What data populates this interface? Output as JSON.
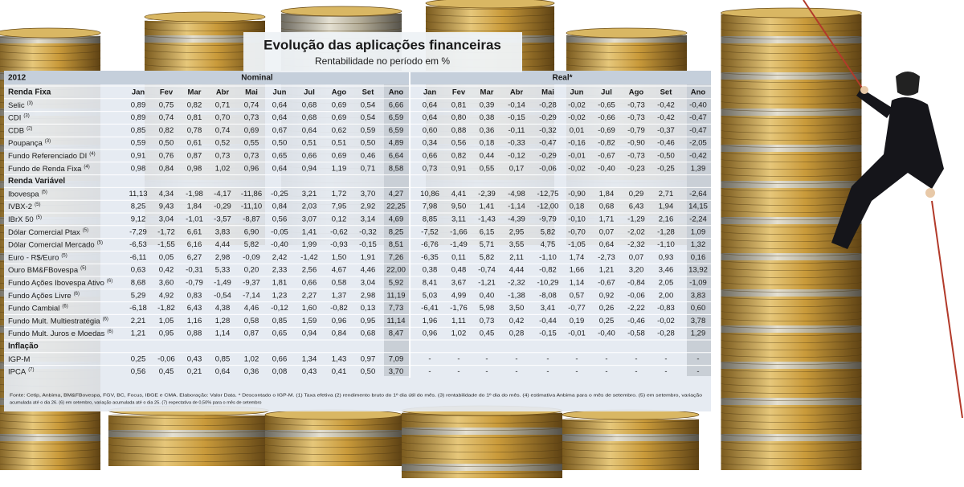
{
  "title": "Evolução das aplicações financeiras",
  "subtitle": "Rentabilidade no período em %",
  "year": "2012",
  "nominal": {
    "label": "Nominal",
    "columns": [
      "Jan",
      "Fev",
      "Mar",
      "Abr",
      "Mai",
      "Jun",
      "Jul",
      "Ago",
      "Set",
      "Ano"
    ]
  },
  "real": {
    "label": "Real*",
    "columns": [
      "Jan",
      "Fev",
      "Mar",
      "Abr",
      "Mai",
      "Jun",
      "Jul",
      "Ago",
      "Set",
      "Ano"
    ]
  },
  "sections": [
    {
      "title": "Renda Fixa",
      "rows": [
        {
          "label": "Selic",
          "note": "(3)",
          "nominal": [
            "0,89",
            "0,75",
            "0,82",
            "0,71",
            "0,74",
            "0,64",
            "0,68",
            "0,69",
            "0,54",
            "6,66"
          ],
          "real": [
            "0,64",
            "0,81",
            "0,39",
            "-0,14",
            "-0,28",
            "-0,02",
            "-0,65",
            "-0,73",
            "-0,42",
            "-0,40"
          ]
        },
        {
          "label": "CDI",
          "note": "(3)",
          "nominal": [
            "0,89",
            "0,74",
            "0,81",
            "0,70",
            "0,73",
            "0,64",
            "0,68",
            "0,69",
            "0,54",
            "6,59"
          ],
          "real": [
            "0,64",
            "0,80",
            "0,38",
            "-0,15",
            "-0,29",
            "-0,02",
            "-0,66",
            "-0,73",
            "-0,42",
            "-0,47"
          ]
        },
        {
          "label": "CDB",
          "note": "(2)",
          "nominal": [
            "0,85",
            "0,82",
            "0,78",
            "0,74",
            "0,69",
            "0,67",
            "0,64",
            "0,62",
            "0,59",
            "6,59"
          ],
          "real": [
            "0,60",
            "0,88",
            "0,36",
            "-0,11",
            "-0,32",
            "0,01",
            "-0,69",
            "-0,79",
            "-0,37",
            "-0,47"
          ]
        },
        {
          "label": "Poupança",
          "note": "(3)",
          "nominal": [
            "0,59",
            "0,50",
            "0,61",
            "0,52",
            "0,55",
            "0,50",
            "0,51",
            "0,51",
            "0,50",
            "4,89"
          ],
          "real": [
            "0,34",
            "0,56",
            "0,18",
            "-0,33",
            "-0,47",
            "-0,16",
            "-0,82",
            "-0,90",
            "-0,46",
            "-2,05"
          ]
        },
        {
          "label": "Fundo Referenciado DI",
          "note": "(4)",
          "nominal": [
            "0,91",
            "0,76",
            "0,87",
            "0,73",
            "0,73",
            "0,65",
            "0,66",
            "0,69",
            "0,46",
            "6,64"
          ],
          "real": [
            "0,66",
            "0,82",
            "0,44",
            "-0,12",
            "-0,29",
            "-0,01",
            "-0,67",
            "-0,73",
            "-0,50",
            "-0,42"
          ]
        },
        {
          "label": "Fundo de Renda Fixa",
          "note": "(4)",
          "nominal": [
            "0,98",
            "0,84",
            "0,98",
            "1,02",
            "0,96",
            "0,64",
            "0,94",
            "1,19",
            "0,71",
            "8,58"
          ],
          "real": [
            "0,73",
            "0,91",
            "0,55",
            "0,17",
            "-0,06",
            "-0,02",
            "-0,40",
            "-0,23",
            "-0,25",
            "1,39"
          ]
        }
      ]
    },
    {
      "title": "Renda Variável",
      "rows": [
        {
          "label": "Ibovespa",
          "note": "(5)",
          "nominal": [
            "11,13",
            "4,34",
            "-1,98",
            "-4,17",
            "-11,86",
            "-0,25",
            "3,21",
            "1,72",
            "3,70",
            "4,27"
          ],
          "real": [
            "10,86",
            "4,41",
            "-2,39",
            "-4,98",
            "-12,75",
            "-0,90",
            "1,84",
            "0,29",
            "2,71",
            "-2,64"
          ]
        },
        {
          "label": "IVBX-2",
          "note": "(5)",
          "nominal": [
            "8,25",
            "9,43",
            "1,84",
            "-0,29",
            "-11,10",
            "0,84",
            "2,03",
            "7,95",
            "2,92",
            "22,25"
          ],
          "real": [
            "7,98",
            "9,50",
            "1,41",
            "-1,14",
            "-12,00",
            "0,18",
            "0,68",
            "6,43",
            "1,94",
            "14,15"
          ]
        },
        {
          "label": "IBrX 50",
          "note": "(5)",
          "nominal": [
            "9,12",
            "3,04",
            "-1,01",
            "-3,57",
            "-8,87",
            "0,56",
            "3,07",
            "0,12",
            "3,14",
            "4,69"
          ],
          "real": [
            "8,85",
            "3,11",
            "-1,43",
            "-4,39",
            "-9,79",
            "-0,10",
            "1,71",
            "-1,29",
            "2,16",
            "-2,24"
          ]
        },
        {
          "label": "Dólar Comercial Ptax",
          "note": "(5)",
          "nominal": [
            "-7,29",
            "-1,72",
            "6,61",
            "3,83",
            "6,90",
            "-0,05",
            "1,41",
            "-0,62",
            "-0,32",
            "8,25"
          ],
          "real": [
            "-7,52",
            "-1,66",
            "6,15",
            "2,95",
            "5,82",
            "-0,70",
            "0,07",
            "-2,02",
            "-1,28",
            "1,09"
          ]
        },
        {
          "label": "Dólar Comercial Mercado",
          "note": "(5)",
          "nominal": [
            "-6,53",
            "-1,55",
            "6,16",
            "4,44",
            "5,82",
            "-0,40",
            "1,99",
            "-0,93",
            "-0,15",
            "8,51"
          ],
          "real": [
            "-6,76",
            "-1,49",
            "5,71",
            "3,55",
            "4,75",
            "-1,05",
            "0,64",
            "-2,32",
            "-1,10",
            "1,32"
          ]
        },
        {
          "label": "Euro - R$/Euro",
          "note": "(5)",
          "nominal": [
            "-6,11",
            "0,05",
            "6,27",
            "2,98",
            "-0,09",
            "2,42",
            "-1,42",
            "1,50",
            "1,91",
            "7,26"
          ],
          "real": [
            "-6,35",
            "0,11",
            "5,82",
            "2,11",
            "-1,10",
            "1,74",
            "-2,73",
            "0,07",
            "0,93",
            "0,16"
          ]
        },
        {
          "label": "Ouro BM&FBovespa",
          "note": "(5)",
          "nominal": [
            "0,63",
            "0,42",
            "-0,31",
            "5,33",
            "0,20",
            "2,33",
            "2,56",
            "4,67",
            "4,46",
            "22,00"
          ],
          "real": [
            "0,38",
            "0,48",
            "-0,74",
            "4,44",
            "-0,82",
            "1,66",
            "1,21",
            "3,20",
            "3,46",
            "13,92"
          ]
        },
        {
          "label": "Fundo Ações Ibovespa Ativo",
          "note": "(6)",
          "nominal": [
            "8,68",
            "3,60",
            "-0,79",
            "-1,49",
            "-9,37",
            "1,81",
            "0,66",
            "0,58",
            "3,04",
            "5,92"
          ],
          "real": [
            "8,41",
            "3,67",
            "-1,21",
            "-2,32",
            "-10,29",
            "1,14",
            "-0,67",
            "-0,84",
            "2,05",
            "-1,09"
          ]
        },
        {
          "label": "Fundo Ações Livre",
          "note": "(6)",
          "nominal": [
            "5,29",
            "4,92",
            "0,83",
            "-0,54",
            "-7,14",
            "1,23",
            "2,27",
            "1,37",
            "2,98",
            "11,19"
          ],
          "real": [
            "5,03",
            "4,99",
            "0,40",
            "-1,38",
            "-8,08",
            "0,57",
            "0,92",
            "-0,06",
            "2,00",
            "3,83"
          ]
        },
        {
          "label": "Fundo Cambial",
          "note": "(6)",
          "nominal": [
            "-6,18",
            "-1,82",
            "6,43",
            "4,38",
            "4,46",
            "-0,12",
            "1,60",
            "-0,82",
            "0,13",
            "7,73"
          ],
          "real": [
            "-6,41",
            "-1,76",
            "5,98",
            "3,50",
            "3,41",
            "-0,77",
            "0,26",
            "-2,22",
            "-0,83",
            "0,60"
          ]
        },
        {
          "label": "Fundo Mult. Multiestratégia",
          "note": "(6)",
          "nominal": [
            "2,21",
            "1,05",
            "1,16",
            "1,28",
            "0,58",
            "0,85",
            "1,59",
            "0,96",
            "0,95",
            "11,14"
          ],
          "real": [
            "1,96",
            "1,11",
            "0,73",
            "0,42",
            "-0,44",
            "0,19",
            "0,25",
            "-0,46",
            "-0,02",
            "3,78"
          ]
        },
        {
          "label": "Fundo Mult. Juros e Moedas",
          "note": "(6)",
          "nominal": [
            "1,21",
            "0,95",
            "0,88",
            "1,14",
            "0,87",
            "0,65",
            "0,94",
            "0,84",
            "0,68",
            "8,47"
          ],
          "real": [
            "0,96",
            "1,02",
            "0,45",
            "0,28",
            "-0,15",
            "-0,01",
            "-0,40",
            "-0,58",
            "-0,28",
            "1,29"
          ]
        }
      ]
    },
    {
      "title": "Inflação",
      "rows": [
        {
          "label": "IGP-M",
          "nominal": [
            "0,25",
            "-0,06",
            "0,43",
            "0,85",
            "1,02",
            "0,66",
            "1,34",
            "1,43",
            "0,97",
            "7,09"
          ],
          "real": [
            "-",
            "-",
            "-",
            "-",
            "-",
            "-",
            "-",
            "-",
            "-",
            "-"
          ]
        },
        {
          "label": "IPCA",
          "note": "(7)",
          "nominal": [
            "0,56",
            "0,45",
            "0,21",
            "0,64",
            "0,36",
            "0,08",
            "0,43",
            "0,41",
            "0,50",
            "3,70"
          ],
          "real": [
            "-",
            "-",
            "-",
            "-",
            "-",
            "-",
            "-",
            "-",
            "-",
            "-"
          ]
        }
      ]
    }
  ],
  "footnote": [
    "Fonte: Cetip, Anbima, BM&FBovespa, FGV, BC, Focus, IBGE e CMA. Elaboração: Valor Data. * Descontado o IGP-M. (1) Taxa efetiva (2) rendimento bruto do 1º dia útil do mês. (3) rentabilidade do 1º dia do mês. (4) estimativa Anbima para o mês de setembro. (5) em setembro, variação",
    "acumulada até o dia 26. (6) em setembro, variação acumulada até o dia 25. (7) expectativa de 0,50% para o mês de setembro"
  ]
}
